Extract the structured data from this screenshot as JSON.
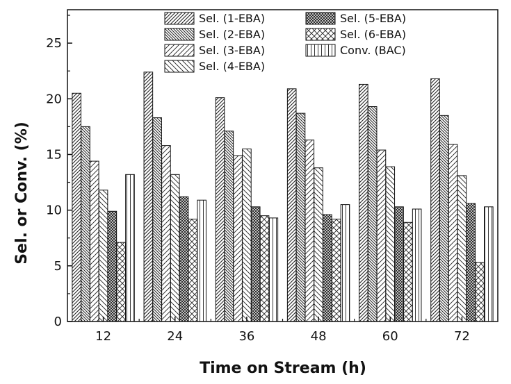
{
  "chart_data": {
    "type": "bar",
    "title": "",
    "xlabel": "Time on Stream (h)",
    "ylabel": "Sel. or Conv. (%)",
    "ylim": [
      0,
      28
    ],
    "yticks": [
      "0",
      "5",
      "10",
      "15",
      "20",
      "25"
    ],
    "categories": [
      "12",
      "24",
      "36",
      "48",
      "60",
      "72"
    ],
    "grid": false,
    "legend_position": "top",
    "series": [
      {
        "name": "Sel. (1-EBA)",
        "values": [
          20.5,
          22.4,
          20.1,
          20.9,
          21.3,
          21.8
        ]
      },
      {
        "name": "Sel. (2-EBA)",
        "values": [
          17.5,
          18.3,
          17.1,
          18.7,
          19.3,
          18.5
        ]
      },
      {
        "name": "Sel. (3-EBA)",
        "values": [
          14.4,
          15.8,
          14.9,
          16.3,
          15.4,
          15.9
        ]
      },
      {
        "name": "Sel. (4-EBA)",
        "values": [
          11.8,
          13.2,
          15.5,
          13.8,
          13.9,
          13.1
        ]
      },
      {
        "name": "Sel. (5-EBA)",
        "values": [
          9.9,
          11.2,
          10.3,
          9.6,
          10.3,
          10.6
        ]
      },
      {
        "name": "Sel. (6-EBA)",
        "values": [
          7.1,
          9.2,
          9.5,
          9.2,
          8.9,
          5.3
        ]
      },
      {
        "name": "Conv. (BAC)",
        "values": [
          13.2,
          10.9,
          9.3,
          10.5,
          10.1,
          10.3
        ]
      }
    ]
  }
}
